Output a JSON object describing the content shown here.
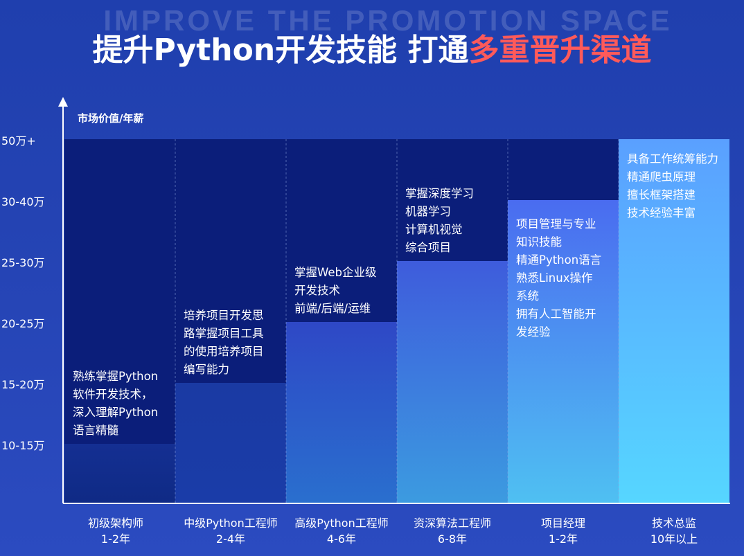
{
  "header": {
    "bg_text": "IMPROVE THE PROMOTION SPACE",
    "title_main": "提升Python开发技能 打通",
    "title_accent": "多重晋升渠道"
  },
  "chart_data": {
    "type": "bar",
    "ylabel": "市场价值/年薪",
    "ytick_labels": [
      "50万+",
      "30-40万",
      "25-30万",
      "20-25万",
      "15-20万",
      "10-15万"
    ],
    "categories": [
      {
        "title": "初级架构师",
        "years": "1-2年"
      },
      {
        "title": "中级Python工程师",
        "years": "2-4年"
      },
      {
        "title": "高级Python工程师",
        "years": "4-6年"
      },
      {
        "title": "资深算法工程师",
        "years": "6-8年"
      },
      {
        "title": "项目经理",
        "years": "1-2年"
      },
      {
        "title": "技术总监",
        "years": "10年以上"
      }
    ],
    "values": [
      "10-15万",
      "15-20万",
      "20-25万",
      "25-30万",
      "30-40万",
      "50万+"
    ],
    "descriptions": [
      [
        "熟练掌握Python",
        "软件开发技术，",
        "深入理解Python",
        "语言精髓"
      ],
      [
        "培养项目开发思",
        "路掌握项目工具",
        "的使用培养项目",
        "编写能力"
      ],
      [
        "掌握Web企业级",
        "开发技术",
        "前端/后端/运维"
      ],
      [
        "掌握深度学习",
        "机器学习",
        "计算机视觉",
        "综合项目"
      ],
      [
        "项目管理与专业",
        "知识技能",
        "精通Python语言",
        "熟悉Linux操作",
        "系统",
        "拥有人工智能开",
        "发经验"
      ],
      [
        "具备工作统筹能力",
        "精通爬虫原理",
        "擅长框架搭建",
        "技术经验丰富"
      ]
    ],
    "colors": {
      "background_column": "#0b1e7a",
      "bar_top": [
        "#142f92",
        "#1a3aa3",
        "#2e48c6",
        "#3e5cdc",
        "#4a6cf0",
        "#5aa0ff"
      ],
      "bar_bottom": [
        "#0f2a85",
        "#1a3ca8",
        "#2a6fce",
        "#3c9be0",
        "#4fc0f2",
        "#56d6ff"
      ],
      "axis": "#ffffff",
      "accent": "#ff5a5a"
    }
  }
}
